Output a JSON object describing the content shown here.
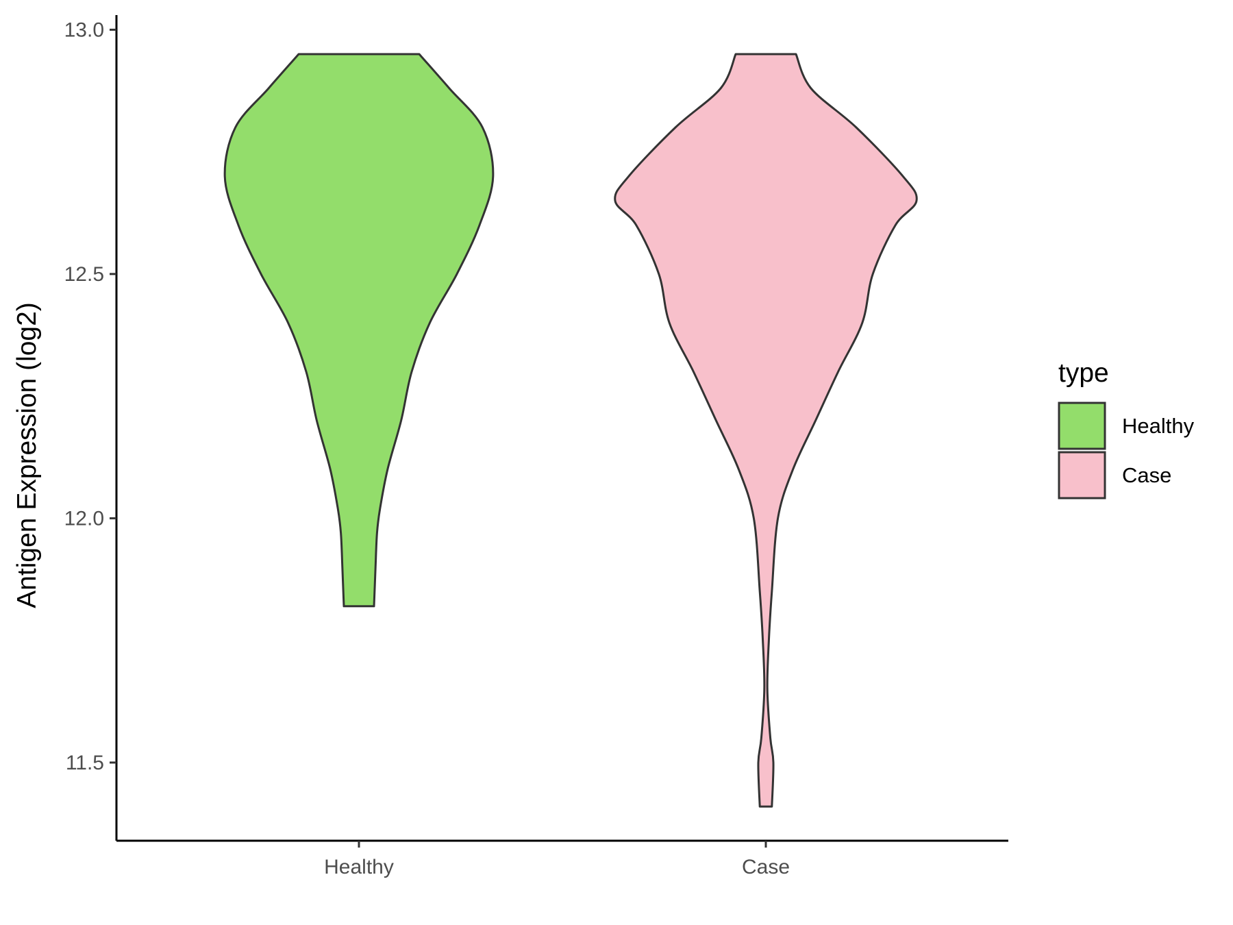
{
  "chart_data": {
    "type": "violin",
    "ylabel": "Antigen Expression (log2)",
    "xlabel": "",
    "ylim": [
      11.34,
      13.03
    ],
    "yticks": [
      11.5,
      12.0,
      12.5,
      13.0
    ],
    "ytick_labels": [
      "11.5",
      "12.0",
      "12.5",
      "13.0"
    ],
    "categories": [
      "Healthy",
      "Case"
    ],
    "grid": false,
    "legend": {
      "title": "type",
      "position": "right",
      "entries": [
        "Healthy",
        "Case"
      ]
    },
    "series": [
      {
        "name": "Healthy",
        "color": "#93dd6b",
        "min": 11.82,
        "max": 12.95,
        "density_profile": [
          [
            11.82,
            0.1
          ],
          [
            11.9,
            0.11
          ],
          [
            11.97,
            0.12
          ],
          [
            12.02,
            0.14
          ],
          [
            12.1,
            0.19
          ],
          [
            12.2,
            0.28
          ],
          [
            12.3,
            0.35
          ],
          [
            12.4,
            0.47
          ],
          [
            12.5,
            0.65
          ],
          [
            12.6,
            0.8
          ],
          [
            12.7,
            0.89
          ],
          [
            12.8,
            0.82
          ],
          [
            12.88,
            0.6
          ],
          [
            12.95,
            0.4
          ]
        ]
      },
      {
        "name": "Case",
        "color": "#f8c0cb",
        "min": 11.41,
        "max": 12.95,
        "density_profile": [
          [
            11.41,
            0.04
          ],
          [
            11.5,
            0.05
          ],
          [
            11.55,
            0.03
          ],
          [
            11.65,
            0.01
          ],
          [
            11.75,
            0.02
          ],
          [
            11.85,
            0.04
          ],
          [
            12.0,
            0.08
          ],
          [
            12.1,
            0.18
          ],
          [
            12.2,
            0.33
          ],
          [
            12.3,
            0.48
          ],
          [
            12.4,
            0.64
          ],
          [
            12.5,
            0.71
          ],
          [
            12.6,
            0.86
          ],
          [
            12.65,
            1.0
          ],
          [
            12.7,
            0.91
          ],
          [
            12.8,
            0.6
          ],
          [
            12.88,
            0.3
          ],
          [
            12.95,
            0.2
          ]
        ]
      }
    ]
  }
}
